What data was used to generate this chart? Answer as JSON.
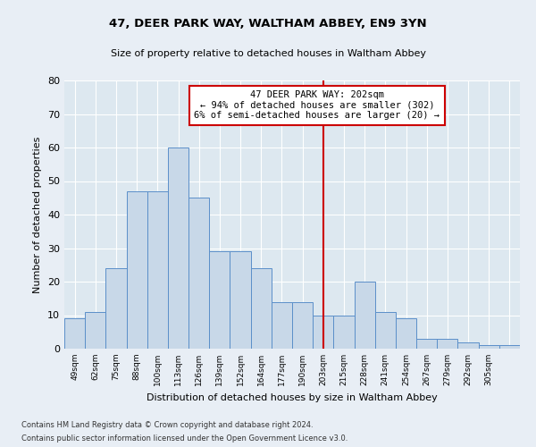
{
  "title1": "47, DEER PARK WAY, WALTHAM ABBEY, EN9 3YN",
  "title2": "Size of property relative to detached houses in Waltham Abbey",
  "xlabel": "Distribution of detached houses by size in Waltham Abbey",
  "ylabel": "Number of detached properties",
  "bar_values": [
    9,
    11,
    24,
    47,
    47,
    60,
    45,
    29,
    29,
    24,
    14,
    14,
    10,
    10,
    20,
    11,
    9,
    3,
    3,
    2,
    1,
    1
  ],
  "categories": [
    "49sqm",
    "62sqm",
    "75sqm",
    "88sqm",
    "100sqm",
    "113sqm",
    "126sqm",
    "139sqm",
    "152sqm",
    "164sqm",
    "177sqm",
    "190sqm",
    "203sqm",
    "215sqm",
    "228sqm",
    "241sqm",
    "254sqm",
    "267sqm",
    "279sqm",
    "292sqm",
    "305sqm",
    ""
  ],
  "bar_color": "#c8d8e8",
  "bar_edge_color": "#5b8fc9",
  "background_color": "#dde8f0",
  "fig_background_color": "#e8eef5",
  "ylim": [
    0,
    80
  ],
  "yticks": [
    0,
    10,
    20,
    30,
    40,
    50,
    60,
    70,
    80
  ],
  "red_line_index": 12,
  "annotation_text": "47 DEER PARK WAY: 202sqm\n← 94% of detached houses are smaller (302)\n6% of semi-detached houses are larger (20) →",
  "annotation_box_color": "#ffffff",
  "annotation_border_color": "#cc0000",
  "footer1": "Contains HM Land Registry data © Crown copyright and database right 2024.",
  "footer2": "Contains public sector information licensed under the Open Government Licence v3.0."
}
